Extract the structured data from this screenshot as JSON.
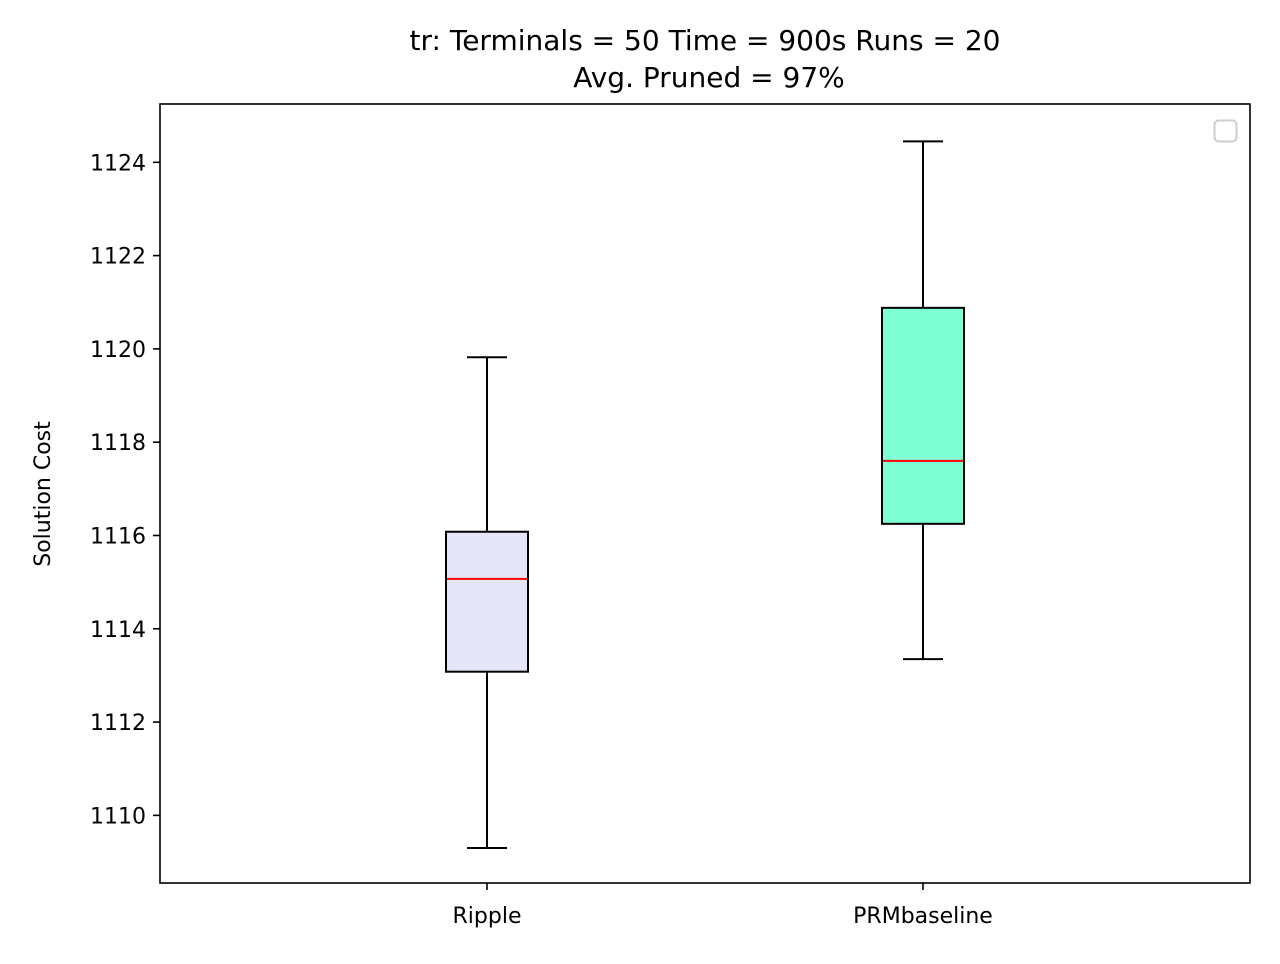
{
  "chart_data": {
    "type": "box",
    "title_line1": "tr:  Terminals = 50  Time = 900s  Runs = 20",
    "title_line2": "Avg. Pruned = 97%",
    "xlabel": "",
    "ylabel": "Solution Cost",
    "ylim": [
      1108.55,
      1125.25
    ],
    "yticks": [
      1110,
      1112,
      1114,
      1116,
      1118,
      1120,
      1122,
      1124
    ],
    "ytick_labels": [
      "1110",
      "1112",
      "1114",
      "1116",
      "1118",
      "1120",
      "1122",
      "1124"
    ],
    "categories": [
      "Ripple",
      "PRMbaseline"
    ],
    "boxes": [
      {
        "category": "Ripple",
        "whisker_low": 1109.3,
        "q1": 1113.08,
        "median": 1115.07,
        "q3": 1116.08,
        "whisker_high": 1119.82,
        "fill": "#e6e6fa"
      },
      {
        "category": "PRMbaseline",
        "whisker_low": 1113.35,
        "q1": 1116.25,
        "median": 1117.6,
        "q3": 1120.88,
        "whisker_high": 1124.45,
        "fill": "#7fffd4"
      }
    ],
    "median_color": "#ff0000",
    "legend": "upper right, empty",
    "grid": false
  }
}
